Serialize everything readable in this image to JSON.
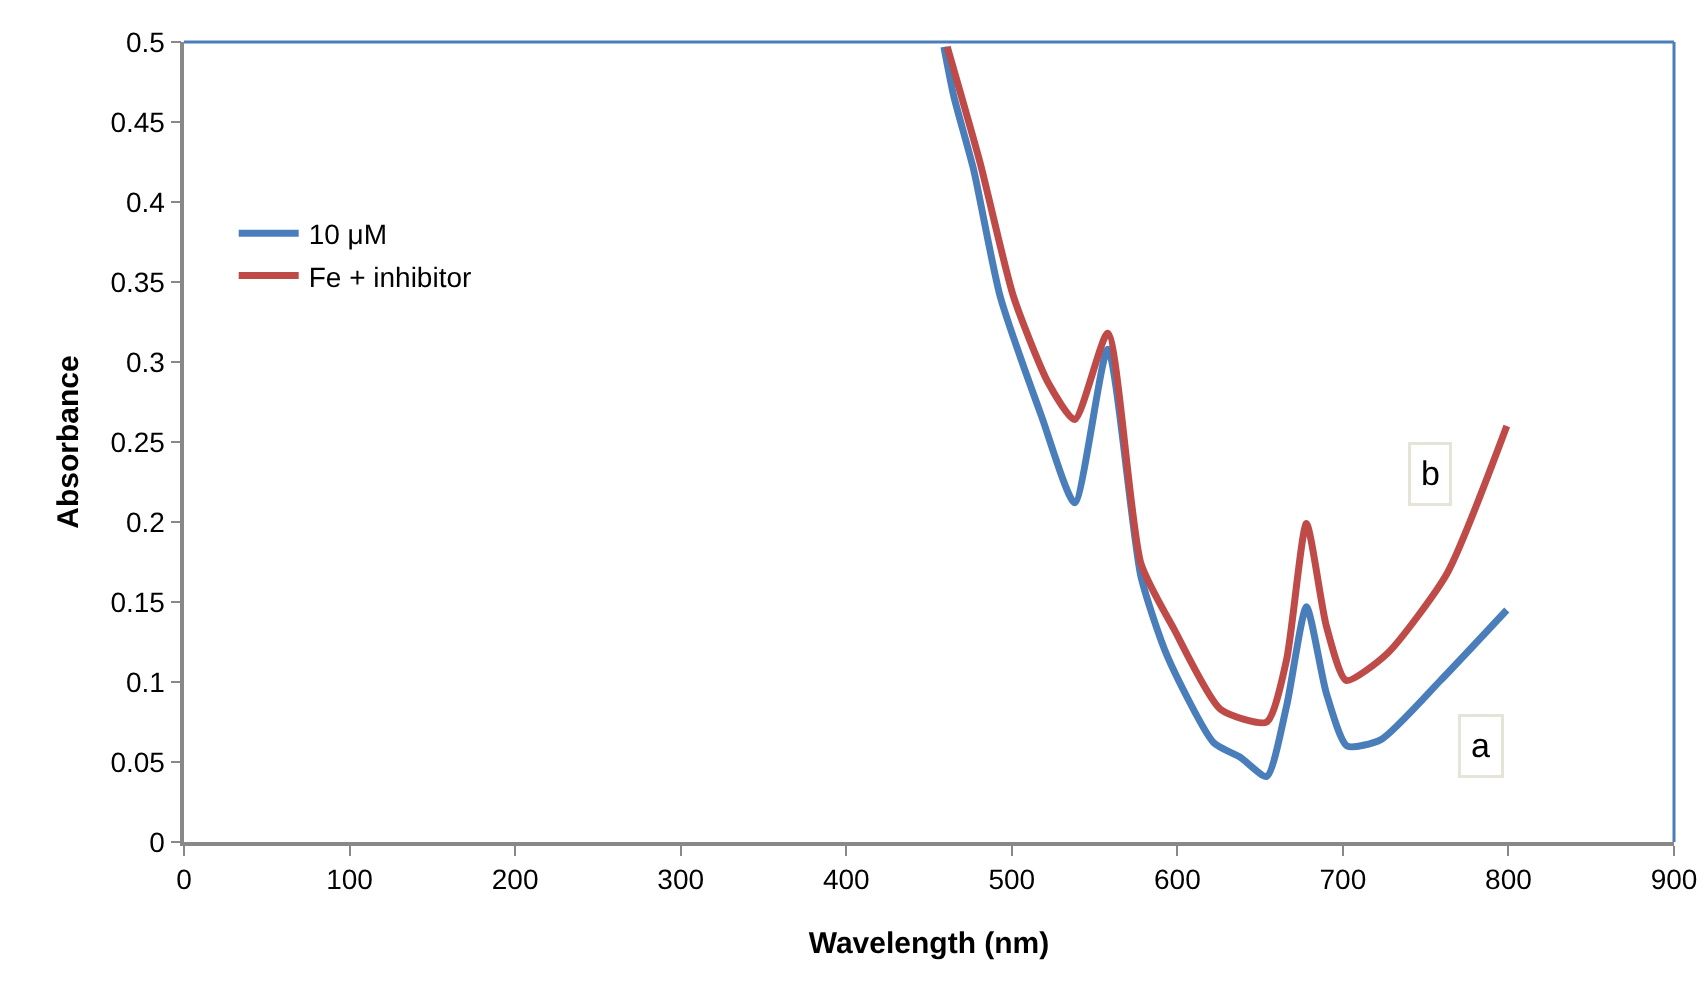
{
  "chart_data": {
    "type": "line",
    "xlabel": "Wavelength (nm)",
    "ylabel": "Absorbance",
    "xlim": [
      0,
      900
    ],
    "xticks": [
      0,
      100,
      200,
      300,
      400,
      500,
      600,
      700,
      800,
      900
    ],
    "ylim": [
      0,
      0.5
    ],
    "yticks": [
      0,
      0.05,
      0.1,
      0.15,
      0.2,
      0.25,
      0.3,
      0.35,
      0.4,
      0.45,
      0.5
    ],
    "grid": false,
    "legend": "top left",
    "marker": "none",
    "line_style": "solid",
    "annotations": [
      {
        "text": "a",
        "x": 783,
        "y": 0.06
      },
      {
        "text": "b",
        "x": 753,
        "y": 0.23
      }
    ],
    "series": [
      {
        "name": "10 μM",
        "color": "#4a7ebb",
        "x": [
          459,
          465,
          477,
          493,
          518,
          538,
          558,
          578,
          594,
          622,
          638,
          654,
          666,
          678,
          690,
          702.5,
          723,
          759,
          799
        ],
        "values": [
          0.497,
          0.466,
          0.42,
          0.341,
          0.266,
          0.212,
          0.308,
          0.166,
          0.116,
          0.062,
          0.053,
          0.041,
          0.085,
          0.147,
          0.093,
          0.06,
          0.064,
          0.101,
          0.145
        ]
      },
      {
        "name": "Fe + inhibitor",
        "color": "#be4b48",
        "x": [
          461,
          481,
          501,
          522,
          538,
          558,
          578,
          598,
          626,
          654,
          666,
          678,
          690,
          702,
          727,
          763,
          799
        ],
        "values": [
          0.497,
          0.424,
          0.341,
          0.287,
          0.264,
          0.318,
          0.174,
          0.133,
          0.083,
          0.075,
          0.114,
          0.199,
          0.135,
          0.101,
          0.118,
          0.168,
          0.26
        ]
      }
    ]
  }
}
